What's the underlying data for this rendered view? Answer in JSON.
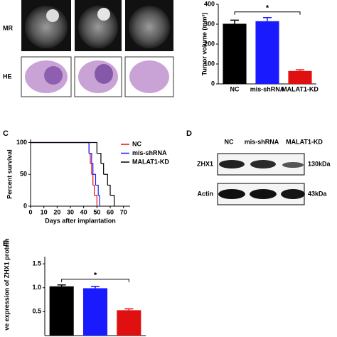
{
  "panels": {
    "mr": "MR",
    "he": "HE",
    "c": "C",
    "d": "D",
    "e": "E"
  },
  "blot": {
    "lanes": [
      "NC",
      "mis-shRNA",
      "MALAT1-KD"
    ],
    "rows": [
      {
        "name": "ZHX1",
        "size": "130kDa"
      },
      {
        "name": "Actin",
        "size": "43kDa"
      }
    ]
  },
  "chart_data": [
    {
      "type": "bar",
      "ylabel": "Tumor volume (mm³)",
      "categories": [
        "NC",
        "mis-shRNA",
        "MALAT1-KD"
      ],
      "values": [
        302,
        315,
        65
      ],
      "errors": [
        18,
        18,
        6
      ],
      "colors": [
        "#000000",
        "#1a1aff",
        "#e01010"
      ],
      "ylim": [
        0,
        400
      ],
      "yticks": [
        0,
        100,
        200,
        300,
        400
      ],
      "significance": "*"
    },
    {
      "type": "line",
      "ylabel": "Percent survival",
      "xlabel": "Days after implantation",
      "series": [
        {
          "name": "NC",
          "color": "#e01010",
          "x": [
            0,
            44,
            45,
            46,
            47,
            48,
            50
          ],
          "values": [
            100,
            83,
            67,
            50,
            33,
            17,
            0
          ]
        },
        {
          "name": "mis-shRNA",
          "color": "#1a1aff",
          "x": [
            0,
            44,
            46,
            47,
            49,
            51,
            52
          ],
          "values": [
            100,
            83,
            67,
            50,
            33,
            17,
            0
          ]
        },
        {
          "name": "MALAT1-KD",
          "color": "#000000",
          "x": [
            0,
            50,
            53,
            55,
            58,
            60,
            63
          ],
          "values": [
            100,
            83,
            67,
            50,
            33,
            17,
            0
          ]
        }
      ],
      "xlim": [
        0,
        75
      ],
      "xticks": [
        0,
        10,
        20,
        30,
        40,
        50,
        60,
        70
      ],
      "ylim": [
        0,
        105
      ],
      "yticks": [
        0,
        50,
        100
      ]
    },
    {
      "type": "bar",
      "ylabel": "ve expression of ZHX1 protein",
      "categories": [
        null,
        null,
        null
      ],
      "values": [
        1.03,
        0.99,
        0.53
      ],
      "errors": [
        0.03,
        0.04,
        0.03
      ],
      "colors": [
        "#000000",
        "#1a1aff",
        "#e01010"
      ],
      "ylim": [
        0,
        1.65
      ],
      "yticks": [
        {
          "value": 0.5,
          "label": "0.5"
        },
        {
          "value": 1,
          "label": "1.0"
        },
        {
          "value": 1.5,
          "label": "1.5"
        }
      ],
      "significance": "*"
    }
  ]
}
